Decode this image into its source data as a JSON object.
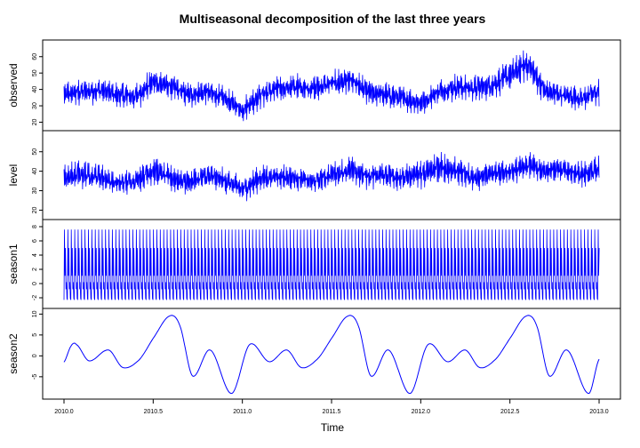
{
  "chart_data": {
    "type": "line",
    "title": "Multiseasonal decomposition of the last three years",
    "xlabel": "Time",
    "xlim": [
      2010.0,
      2013.0
    ],
    "x_ticks": [
      "2010.0",
      "2010.5",
      "2011.0",
      "2011.5",
      "2012.0",
      "2012.5",
      "2013.0"
    ],
    "line_color": "#0000ff",
    "grid": false,
    "panels": [
      {
        "name": "observed",
        "ylabel": "observed",
        "ylim": [
          17,
          68
        ],
        "y_ticks": [
          "20",
          "30",
          "40",
          "50",
          "60"
        ],
        "series": {
          "x": [
            2010.0,
            2010.1,
            2010.2,
            2010.3,
            2010.4,
            2010.5,
            2010.6,
            2010.7,
            2010.8,
            2010.9,
            2011.0,
            2011.1,
            2011.2,
            2011.3,
            2011.4,
            2011.5,
            2011.6,
            2011.7,
            2011.8,
            2011.9,
            2012.0,
            2012.1,
            2012.2,
            2012.3,
            2012.4,
            2012.5,
            2012.6,
            2012.7,
            2012.8,
            2012.9,
            2013.0
          ],
          "trend": [
            36,
            38,
            39,
            36,
            35,
            44,
            41,
            36,
            38,
            34,
            27,
            36,
            40,
            41,
            40,
            43,
            45,
            38,
            36,
            34,
            31,
            38,
            41,
            40,
            42,
            48,
            55,
            38,
            36,
            34,
            38
          ],
          "amplitude": [
            10,
            10,
            10,
            10,
            10,
            11,
            10,
            10,
            9,
            9,
            9,
            10,
            10,
            10,
            10,
            10,
            10,
            10,
            10,
            9,
            9,
            10,
            10,
            10,
            10,
            11,
            12,
            10,
            9,
            9,
            10
          ]
        }
      },
      {
        "name": "level",
        "ylabel": "level",
        "ylim": [
          17,
          59
        ],
        "y_ticks": [
          "20",
          "30",
          "40",
          "50"
        ],
        "series": {
          "x": [
            2010.0,
            2010.1,
            2010.2,
            2010.3,
            2010.4,
            2010.5,
            2010.6,
            2010.7,
            2010.8,
            2010.9,
            2011.0,
            2011.1,
            2011.2,
            2011.3,
            2011.4,
            2011.5,
            2011.6,
            2011.7,
            2011.8,
            2011.9,
            2012.0,
            2012.1,
            2012.2,
            2012.3,
            2012.4,
            2012.5,
            2012.6,
            2012.7,
            2012.8,
            2012.9,
            2013.0
          ],
          "trend": [
            36,
            38,
            37,
            33,
            35,
            40,
            36,
            34,
            37,
            35,
            30,
            36,
            37,
            36,
            34,
            38,
            40,
            37,
            38,
            36,
            38,
            41,
            40,
            36,
            38,
            40,
            42,
            40,
            40,
            38,
            40
          ],
          "amplitude": [
            9,
            9,
            8,
            8,
            8,
            9,
            8,
            8,
            8,
            8,
            8,
            8,
            8,
            8,
            7,
            8,
            9,
            8,
            8,
            8,
            9,
            10,
            9,
            8,
            8,
            8,
            9,
            8,
            8,
            8,
            9
          ]
        }
      },
      {
        "name": "season1",
        "ylabel": "season1",
        "ylim": [
          -3,
          8.5
        ],
        "y_ticks": [
          "-2",
          "0",
          "2",
          "4",
          "6",
          "8"
        ],
        "series": {
          "period": 0.01918,
          "weekly_pattern": [
            -2.3,
            7.6,
            1.1,
            5.0,
            -0.8,
            0.2,
            -2.1
          ]
        }
      },
      {
        "name": "season2",
        "ylabel": "season2",
        "ylim": [
          -9.5,
          10.5
        ],
        "y_ticks": [
          "-5",
          "0",
          "5",
          "10"
        ],
        "series": {
          "x": [
            2010.0,
            2010.04,
            2010.07,
            2010.14,
            2010.25,
            2010.33,
            2010.42,
            2010.5,
            2010.59,
            2010.65,
            2010.72,
            2010.82,
            2010.94,
            2011.04,
            2011.15,
            2011.25,
            2011.33,
            2011.42,
            2011.5,
            2011.59,
            2011.65,
            2011.72,
            2011.82,
            2011.94,
            2012.04,
            2012.15,
            2012.25,
            2012.33,
            2012.42,
            2012.5,
            2012.59,
            2012.65,
            2012.72,
            2012.82,
            2012.94,
            2013.0
          ],
          "y": [
            -1.5,
            2.4,
            2.7,
            -1.2,
            1.4,
            -2.8,
            -1.0,
            4.2,
            9.5,
            7.2,
            -4.8,
            1.4,
            -9.0,
            2.7,
            -1.4,
            1.4,
            -2.8,
            -0.8,
            4.2,
            9.5,
            7.2,
            -4.8,
            1.4,
            -9.0,
            2.7,
            -1.4,
            1.4,
            -2.8,
            -0.8,
            4.2,
            9.5,
            7.2,
            -4.8,
            1.4,
            -9.0,
            -0.8
          ]
        }
      }
    ]
  }
}
